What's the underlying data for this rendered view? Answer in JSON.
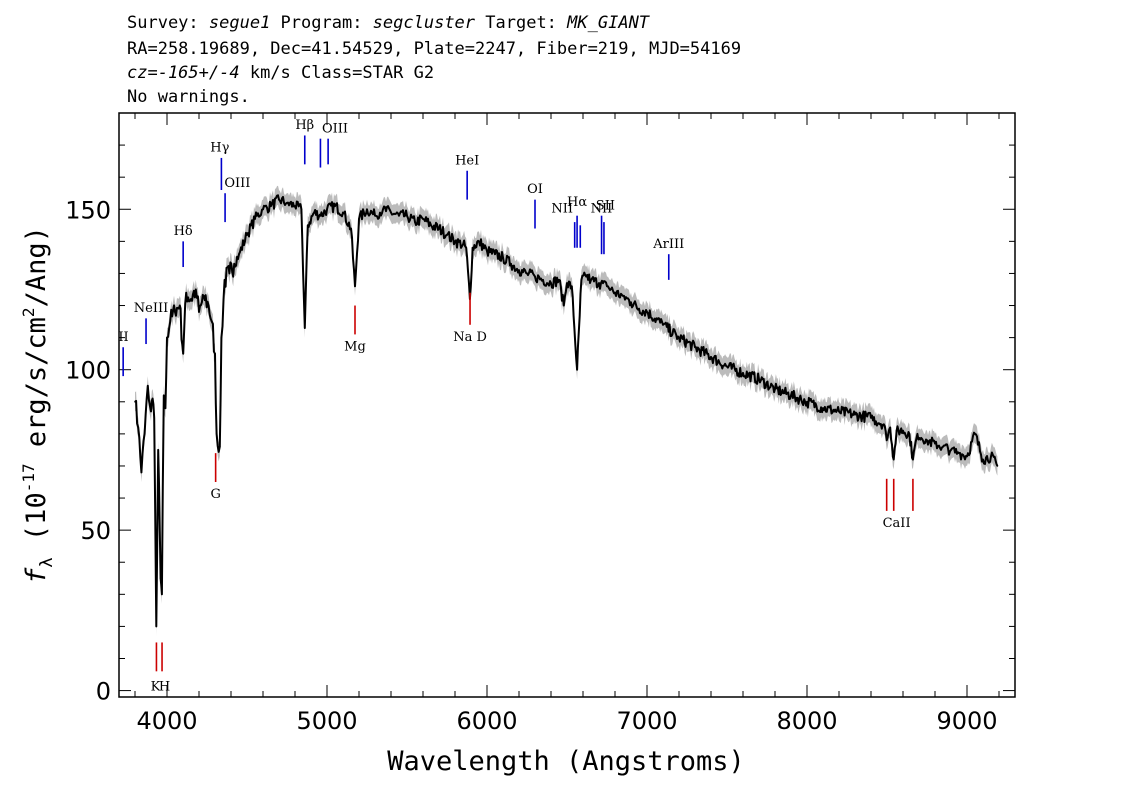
{
  "header": {
    "line1": [
      {
        "text": "Survey: ",
        "italic": false
      },
      {
        "text": "segue1",
        "italic": true
      },
      {
        "text": " Program: ",
        "italic": false
      },
      {
        "text": "segcluster",
        "italic": true
      },
      {
        "text": " Target: ",
        "italic": false
      },
      {
        "text": "MK_GIANT",
        "italic": true
      }
    ],
    "line2": "RA=258.19689, Dec=41.54529, Plate=2247, Fiber=219, MJD=54169",
    "line3": [
      {
        "text": "cz=-165+/-4",
        "italic": true
      },
      {
        "text": " km/s Class=STAR G2",
        "italic": false
      }
    ],
    "line4": "No warnings."
  },
  "chart_data": {
    "type": "line",
    "title": "",
    "xlabel": "Wavelength (Angstroms)",
    "ylabel": "f_λ (10^-17 erg/s/cm^2/Ang)",
    "ylabel_parts": {
      "f": "f",
      "sub": "λ",
      "pre": "(10",
      "exp1": "-17",
      "mid": " erg/s/cm",
      "exp2": "2",
      "post": "/Ang)"
    },
    "xlim": [
      3700,
      9300
    ],
    "ylim": [
      -2,
      180
    ],
    "xticks": [
      4000,
      5000,
      6000,
      7000,
      8000,
      9000
    ],
    "yticks": [
      0,
      50,
      100,
      150
    ],
    "series": [
      {
        "color": "#000000",
        "error_band_color": "#bbbbbb",
        "x": [
          3800,
          3820,
          3840,
          3860,
          3880,
          3900,
          3910,
          3920,
          3933,
          3945,
          3960,
          3968,
          3980,
          3990,
          4000,
          4020,
          4050,
          4080,
          4101,
          4120,
          4150,
          4180,
          4200,
          4230,
          4260,
          4280,
          4300,
          4310,
          4330,
          4340,
          4360,
          4390,
          4420,
          4450,
          4500,
          4550,
          4600,
          4650,
          4700,
          4750,
          4800,
          4840,
          4861,
          4880,
          4920,
          4960,
          5000,
          5050,
          5100,
          5150,
          5175,
          5200,
          5250,
          5300,
          5350,
          5400,
          5450,
          5500,
          5550,
          5600,
          5650,
          5700,
          5750,
          5800,
          5850,
          5870,
          5893,
          5910,
          5950,
          6000,
          6050,
          6100,
          6150,
          6200,
          6250,
          6300,
          6350,
          6400,
          6450,
          6480,
          6500,
          6530,
          6563,
          6590,
          6620,
          6650,
          6700,
          6750,
          6800,
          6850,
          6900,
          6950,
          7000,
          7100,
          7200,
          7300,
          7400,
          7500,
          7600,
          7700,
          7800,
          7900,
          8000,
          8100,
          8200,
          8300,
          8400,
          8480,
          8498,
          8520,
          8542,
          8560,
          8600,
          8640,
          8662,
          8690,
          8750,
          8800,
          8850,
          8900,
          8950,
          9000,
          9050,
          9100,
          9150,
          9190
        ],
        "y": [
          90,
          82,
          68,
          80,
          95,
          87,
          91,
          85,
          20,
          75,
          35,
          30,
          92,
          88,
          110,
          115,
          118,
          120,
          105,
          124,
          122,
          125,
          118,
          123,
          120,
          115,
          105,
          80,
          76,
          110,
          128,
          130,
          133,
          136,
          142,
          147,
          150,
          151,
          153,
          152,
          151,
          150,
          113,
          145,
          149,
          148,
          150,
          151,
          149,
          144,
          126,
          147,
          150,
          148,
          150,
          149,
          148,
          148,
          146,
          147,
          145,
          144,
          142,
          140,
          139,
          138,
          122,
          138,
          140,
          137,
          136,
          135,
          133,
          131,
          130,
          129,
          128,
          127,
          128,
          120,
          127,
          126,
          100,
          128,
          129,
          128,
          127,
          126,
          124,
          123,
          121,
          119,
          118,
          114,
          110,
          107,
          104,
          101,
          99,
          97,
          94,
          92,
          90,
          88,
          87,
          86,
          85,
          83,
          78,
          82,
          72,
          81,
          81,
          80,
          72,
          80,
          78,
          77,
          76,
          75,
          74,
          73,
          80,
          72,
          73,
          70
        ]
      }
    ],
    "lines_blue": [
      {
        "label": "II",
        "x": 3726,
        "y0": 98,
        "y1": 107
      },
      {
        "label": "NeIII",
        "x": 3869,
        "y0": 108,
        "y1": 116
      },
      {
        "label": "Hδ",
        "x": 4101,
        "y0": 132,
        "y1": 140
      },
      {
        "label": "Hγ",
        "x": 4340,
        "y0": 156,
        "y1": 166
      },
      {
        "label": "OIII",
        "x": 4363,
        "y0": 146,
        "y1": 155
      },
      {
        "label": "Hβ",
        "x": 4861,
        "y0": 164,
        "y1": 173
      },
      {
        "label": "OIII",
        "x": 4959,
        "y0": 163,
        "y1": 172
      },
      {
        "label": "OIII",
        "x": 5007,
        "y0": 164,
        "y1": 172
      },
      {
        "label": "HeI",
        "x": 5876,
        "y0": 153,
        "y1": 162
      },
      {
        "label": "OI",
        "x": 6300,
        "y0": 144,
        "y1": 153
      },
      {
        "label": "NII",
        "x": 6548,
        "y0": 138,
        "y1": 146
      },
      {
        "label": "Hα",
        "x": 6563,
        "y0": 138,
        "y1": 148
      },
      {
        "label": "NII",
        "x": 6583,
        "y0": 138,
        "y1": 145
      },
      {
        "label": "SII",
        "x": 6716,
        "y0": 136,
        "y1": 148
      },
      {
        "label": "SII",
        "x": 6731,
        "y0": 136,
        "y1": 146
      },
      {
        "label": "ArIII",
        "x": 7136,
        "y0": 128,
        "y1": 136
      }
    ],
    "lines_red": [
      {
        "label": "K",
        "x": 3934,
        "y0": 6,
        "y1": 15
      },
      {
        "label": "H",
        "x": 3969,
        "y0": 6,
        "y1": 15
      },
      {
        "label": "G",
        "x": 4304,
        "y0": 65,
        "y1": 74
      },
      {
        "label": "Mg",
        "x": 5175,
        "y0": 111,
        "y1": 120
      },
      {
        "label": "Na D",
        "x": 5894,
        "y0": 114,
        "y1": 124
      },
      {
        "label": "CaII",
        "x": 8498,
        "y0": 56,
        "y1": 66
      },
      {
        "label": "CaII",
        "x": 8542,
        "y0": 56,
        "y1": 66
      },
      {
        "label": "CaII",
        "x": 8662,
        "y0": 56,
        "y1": 66
      }
    ],
    "text_labels": [
      {
        "text": "II",
        "x": 3728,
        "y": 109
      },
      {
        "text": "NeIII",
        "x": 3900,
        "y": 118
      },
      {
        "text": "Hδ",
        "x": 4101,
        "y": 142
      },
      {
        "text": "Hγ",
        "x": 4330,
        "y": 168
      },
      {
        "text": "OIII",
        "x": 4440,
        "y": 157
      },
      {
        "text": "Hβ",
        "x": 4861,
        "y": 175
      },
      {
        "text": "OIII",
        "x": 5050,
        "y": 174
      },
      {
        "text": "HeI",
        "x": 5876,
        "y": 164
      },
      {
        "text": "OI",
        "x": 6300,
        "y": 155
      },
      {
        "text": "NII",
        "x": 6470,
        "y": 149
      },
      {
        "text": "Hα",
        "x": 6563,
        "y": 151
      },
      {
        "text": "NII",
        "x": 6715,
        "y": 149
      },
      {
        "text": "SII",
        "x": 6740,
        "y": 150
      },
      {
        "text": "ArIII",
        "x": 7136,
        "y": 138
      },
      {
        "text": "K",
        "x": 3928,
        "y": 0
      },
      {
        "text": "H",
        "x": 3985,
        "y": 0
      },
      {
        "text": "G",
        "x": 4304,
        "y": 60
      },
      {
        "text": "Mg",
        "x": 5175,
        "y": 106
      },
      {
        "text": "Na  D",
        "x": 5894,
        "y": 109
      },
      {
        "text": "CaII",
        "x": 8560,
        "y": 51
      }
    ]
  }
}
